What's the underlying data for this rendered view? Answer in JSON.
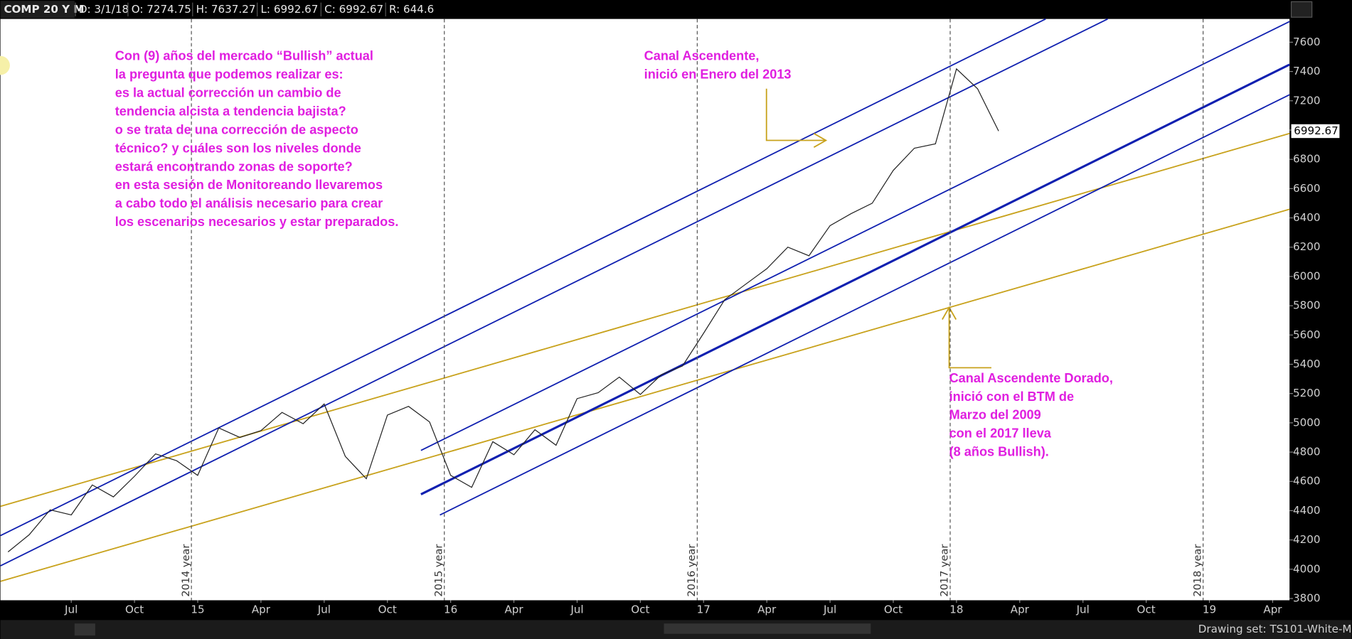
{
  "header": {
    "symbol": "COMP 20 Y M",
    "fields": [
      "D: 3/1/18",
      "O: 7274.75",
      "H: 7637.27",
      "L: 6992.67",
      "C: 6992.67",
      "R: 644.6"
    ]
  },
  "chart_data": {
    "type": "line",
    "color": "#222222",
    "x": [
      -9,
      -8,
      -7,
      -6,
      -5,
      -4,
      -3,
      -2,
      -1,
      0,
      1,
      2,
      3,
      4,
      5,
      6,
      7,
      8,
      9,
      10,
      11,
      12,
      13,
      14,
      15,
      16,
      17,
      18,
      19,
      20,
      21,
      22,
      23,
      24,
      25,
      26,
      27,
      28,
      29,
      30,
      31,
      32,
      33,
      34,
      35,
      36,
      37,
      38
    ],
    "values": [
      4118,
      4235,
      4406,
      4371,
      4576,
      4494,
      4635,
      4788,
      4741,
      4641,
      4965,
      4900,
      4947,
      5071,
      4994,
      5129,
      4771,
      4618,
      5053,
      5112,
      5006,
      4641,
      4559,
      4871,
      4782,
      4953,
      4847,
      5165,
      5206,
      5312,
      5194,
      5329,
      5388,
      5612,
      5841,
      5947,
      6053,
      6200,
      6141,
      6347,
      6429,
      6500,
      6724,
      6876,
      6906,
      7418,
      7282,
      6993
    ],
    "xlim": [
      -9.36,
      51.8
    ],
    "xticks": [
      {
        "value": -6,
        "label": "Jul"
      },
      {
        "value": -3,
        "label": "Oct"
      },
      {
        "value": 0,
        "label": "15"
      },
      {
        "value": 3,
        "label": "Apr"
      },
      {
        "value": 6,
        "label": "Jul"
      },
      {
        "value": 9,
        "label": "Oct"
      },
      {
        "value": 12,
        "label": "16"
      },
      {
        "value": 15,
        "label": "Apr"
      },
      {
        "value": 18,
        "label": "Jul"
      },
      {
        "value": 21,
        "label": "Oct"
      },
      {
        "value": 24,
        "label": "17"
      },
      {
        "value": 27,
        "label": "Apr"
      },
      {
        "value": 30,
        "label": "Jul"
      },
      {
        "value": 33,
        "label": "Oct"
      },
      {
        "value": 36,
        "label": "18"
      },
      {
        "value": 39,
        "label": "Apr"
      },
      {
        "value": 42,
        "label": "Jul"
      },
      {
        "value": 45,
        "label": "Oct"
      },
      {
        "value": 48,
        "label": "19"
      },
      {
        "value": 51,
        "label": "Apr"
      }
    ],
    "ylim": [
      3788,
      7759
    ],
    "yticks": [
      3800,
      4000,
      4200,
      4400,
      4600,
      4800,
      5000,
      5200,
      5400,
      5600,
      5800,
      6000,
      6200,
      6400,
      6600,
      6800,
      7000,
      7200,
      7400,
      7600
    ],
    "last_price": 6992.67,
    "year_markers": [
      {
        "value": -0.3,
        "label": "2014 year"
      },
      {
        "value": 11.7,
        "label": "2015 year"
      },
      {
        "value": 23.7,
        "label": "2016 year"
      },
      {
        "value": 35.7,
        "label": "2017 year"
      },
      {
        "value": 47.7,
        "label": "2018 year"
      }
    ],
    "annotations": [
      [
        "Con (9) años del mercado “Bullish” actual",
        "la pregunta que podemos realizar es:",
        "es la actual corrección un cambio de",
        "tendencia alcista a tendencia bajista?",
        "o se trata de una corrección de aspecto",
        "técnico? y cuáles son los niveles donde",
        "estará encontrando zonas de soporte?",
        "en esta sesión de Monitoreando llevaremos",
        "a cabo todo el análisis necesario para crear",
        "los escenarios necesarios y estar preparados."
      ],
      [
        "Canal Ascendente,",
        "inició en Enero del 2013"
      ],
      [
        "Canal Ascendente Dorado,",
        "inició con el BTM de",
        "Marzo del 2009",
        "con el 2017 lleva",
        "(8 años Bullish)."
      ]
    ]
  },
  "footer": "Drawing set: TS101-White-M..."
}
